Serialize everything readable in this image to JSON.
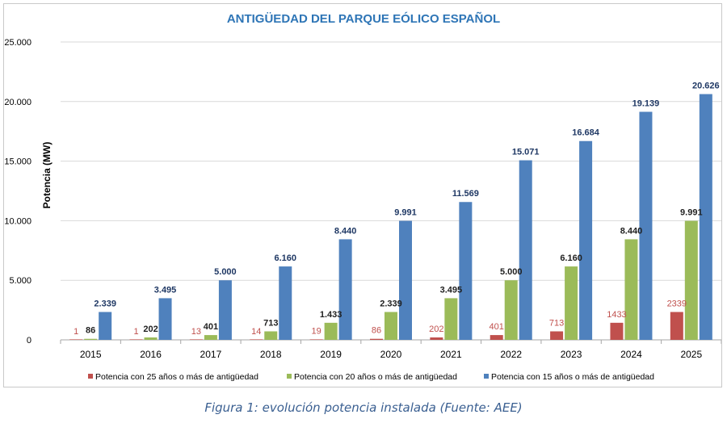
{
  "chart_data": {
    "type": "bar",
    "title": "ANTIGÜEDAD DEL PARQUE EÓLICO ESPAÑOL",
    "xlabel": "",
    "ylabel": "Potencia (MW)",
    "ylim": [
      0,
      25000
    ],
    "yticks": [
      "0",
      "5.000",
      "10.000",
      "15.000",
      "20.000",
      "25.000"
    ],
    "ytick_values": [
      0,
      5000,
      10000,
      15000,
      20000,
      25000
    ],
    "grid": true,
    "legend_position": "bottom",
    "categories": [
      "2015",
      "2016",
      "2017",
      "2018",
      "2019",
      "2020",
      "2021",
      "2022",
      "2023",
      "2024",
      "2025"
    ],
    "series": [
      {
        "name": "Potencia con 25 años o más de antigüedad",
        "color": "#c0504d",
        "label_color": "#c0504d",
        "values": [
          1,
          1,
          13,
          14,
          19,
          86,
          202,
          401,
          713,
          1433,
          2339
        ],
        "labels": [
          "1",
          "1",
          "13",
          "14",
          "19",
          "86",
          "202",
          "401",
          "713",
          "1433",
          "2339"
        ]
      },
      {
        "name": "Potencia con 20 años o más de antigüedad",
        "color": "#9bbb59",
        "label_color": "#1f1f1f",
        "values": [
          86,
          202,
          401,
          713,
          1433,
          2339,
          3495,
          5000,
          6160,
          8440,
          9991
        ],
        "labels": [
          "86",
          "202",
          "401",
          "713",
          "1.433",
          "2.339",
          "3.495",
          "5.000",
          "6.160",
          "8.440",
          "9.991"
        ]
      },
      {
        "name": "Potencia con 15 años o más de antigüedad",
        "color": "#4f81bd",
        "label_color": "#1f3864",
        "values": [
          2339,
          3495,
          5000,
          6160,
          8440,
          9991,
          11569,
          15071,
          16684,
          19139,
          20626
        ],
        "labels": [
          "2.339",
          "3.495",
          "5.000",
          "6.160",
          "8.440",
          "9.991",
          "11.569",
          "15.071",
          "16.684",
          "19.139",
          "20.626"
        ]
      }
    ]
  },
  "caption": "Figura 1: evolución potencia instalada (Fuente: AEE)"
}
